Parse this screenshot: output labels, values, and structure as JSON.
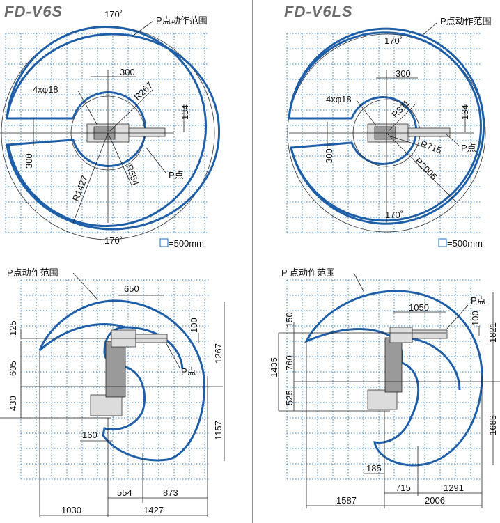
{
  "panels": {
    "tl": {
      "title": "FD-V6S",
      "range_label": "P点动作范围",
      "angle_top": "170˚",
      "angle_bottom": "170˚",
      "hole": "4xφ18",
      "dim_300_top": "300",
      "dim_300_left": "300",
      "dim_134": "134",
      "r_267": "R267",
      "r_554": "R554",
      "r_1427": "R1427",
      "p_point": "P点"
    },
    "tr": {
      "title": "FD-V6LS",
      "range_label": "P点动作范围",
      "angle_top": "170˚",
      "angle_bottom": "170˚",
      "hole": "4xφ18",
      "dim_300_top": "300",
      "dim_300_left": "300",
      "dim_134": "134",
      "r_311": "R311",
      "r_715": "R715",
      "r_2006": "R2006",
      "p_point": "P点"
    },
    "bl": {
      "range_label": "P点动作范围",
      "d650": "650",
      "d125": "125",
      "d605": "605",
      "d430": "430",
      "d100": "100",
      "d1267": "1267",
      "d1157": "1157",
      "d160": "160",
      "d554": "554",
      "d873": "873",
      "d1030": "1030",
      "d1427": "1427",
      "p_point": "P点"
    },
    "br": {
      "range_label": "P 点动作范围",
      "d1050": "1050",
      "d150": "150",
      "d760": "760",
      "d525": "525",
      "d1435": "1435",
      "d100": "100",
      "d1821": "1821",
      "d1683": "1683",
      "d185": "185",
      "d715": "715",
      "d1291": "1291",
      "d1587": "1587",
      "d2006": "2006",
      "p_point": "P点"
    }
  },
  "legend": {
    "top_left": "=500mm",
    "top_right": "=500mm"
  }
}
